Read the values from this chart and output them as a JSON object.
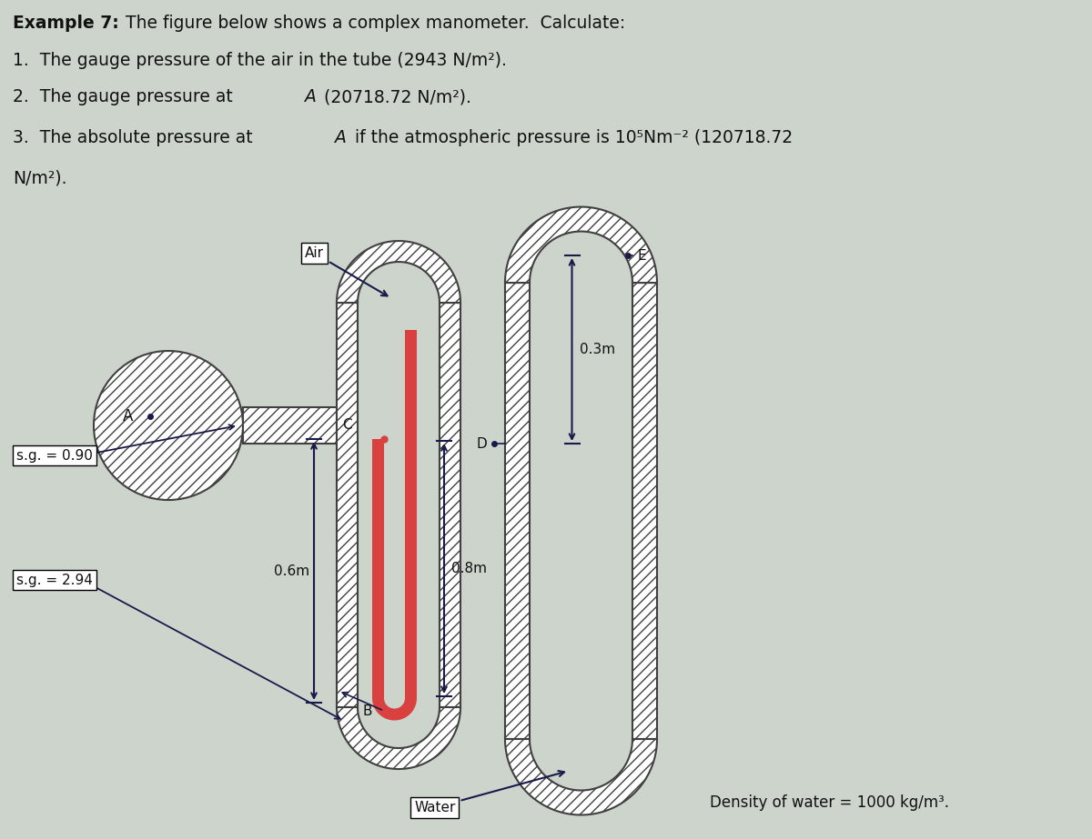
{
  "bg_color": "#ccd4cc",
  "text_bg_color": "#dde5dd",
  "text_color": "#111111",
  "tube_color": "#404040",
  "hatch_pattern": "///",
  "red_color": "#d94040",
  "arrow_color": "#1a1a4a",
  "white": "#ffffff",
  "label_air": "Air",
  "label_water": "Water",
  "label_sg090": "s.g. = 0.90",
  "label_sg294": "s.g. = 2.94",
  "label_density": "Density of water = 1000 kg/m³.",
  "label_06m": "0.6m",
  "label_03m": "0.3m",
  "label_08m": "0.8m",
  "label_A": "A",
  "label_B": "B",
  "label_C": "C",
  "label_D": "D",
  "label_E": "E"
}
